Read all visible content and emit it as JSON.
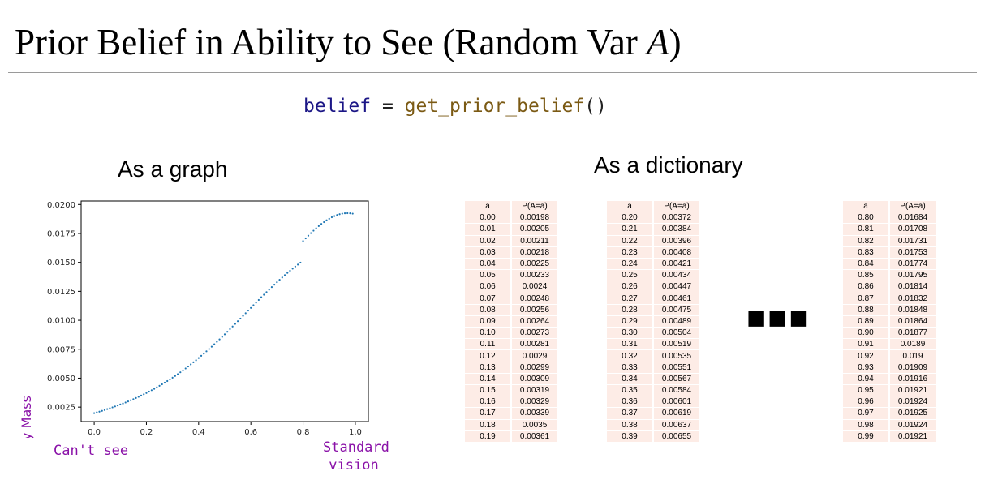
{
  "title": {
    "main": "Prior Belief in Ability to See (Random Var ",
    "var": "A",
    "close": ")"
  },
  "code": {
    "var": "belief",
    "op": " = ",
    "fn": "get_prior_belief",
    "paren": "()"
  },
  "captions": {
    "graph": "As a graph",
    "dictionary": "As a dictionary"
  },
  "chart_data": {
    "type": "scatter",
    "ylabel": "Probability Mass",
    "xlim": [
      -0.05,
      1.05
    ],
    "ylim": [
      0.00125,
      0.0203
    ],
    "xticks": [
      0.0,
      0.2,
      0.4,
      0.6,
      0.8,
      1.0
    ],
    "xtick_labels": [
      "0.0",
      "0.2",
      "0.4",
      "0.6",
      "0.8",
      "1.0"
    ],
    "yticks": [
      0.0025,
      0.005,
      0.0075,
      0.01,
      0.0125,
      0.015,
      0.0175,
      0.02
    ],
    "ytick_labels": [
      "0.0025",
      "0.0050",
      "0.0075",
      "0.0100",
      "0.0125",
      "0.0150",
      "0.0175",
      "0.0200"
    ],
    "color": "#1f77b4",
    "x": [
      0.0,
      0.01,
      0.02,
      0.03,
      0.04,
      0.05,
      0.06,
      0.07,
      0.08,
      0.09,
      0.1,
      0.11,
      0.12,
      0.13,
      0.14,
      0.15,
      0.16,
      0.17,
      0.18,
      0.19,
      0.2,
      0.21,
      0.22,
      0.23,
      0.24,
      0.25,
      0.26,
      0.27,
      0.28,
      0.29,
      0.3,
      0.31,
      0.32,
      0.33,
      0.34,
      0.35,
      0.36,
      0.37,
      0.38,
      0.39,
      0.4,
      0.41,
      0.42,
      0.43,
      0.44,
      0.45,
      0.46,
      0.47,
      0.48,
      0.49,
      0.5,
      0.51,
      0.52,
      0.53,
      0.54,
      0.55,
      0.56,
      0.57,
      0.58,
      0.59,
      0.6,
      0.61,
      0.62,
      0.63,
      0.64,
      0.65,
      0.66,
      0.67,
      0.68,
      0.69,
      0.7,
      0.71,
      0.72,
      0.73,
      0.74,
      0.75,
      0.76,
      0.77,
      0.78,
      0.79,
      0.8,
      0.81,
      0.82,
      0.83,
      0.84,
      0.85,
      0.86,
      0.87,
      0.88,
      0.89,
      0.9,
      0.91,
      0.92,
      0.93,
      0.94,
      0.95,
      0.96,
      0.97,
      0.98,
      0.99
    ],
    "y": [
      0.00198,
      0.00205,
      0.00211,
      0.00218,
      0.00225,
      0.00233,
      0.0024,
      0.00248,
      0.00256,
      0.00264,
      0.00273,
      0.00281,
      0.0029,
      0.00299,
      0.00309,
      0.00319,
      0.00329,
      0.00339,
      0.0035,
      0.00361,
      0.00372,
      0.00384,
      0.00396,
      0.00408,
      0.00421,
      0.00434,
      0.00447,
      0.00461,
      0.00475,
      0.00489,
      0.00504,
      0.00519,
      0.00535,
      0.00551,
      0.00567,
      0.00584,
      0.00601,
      0.00619,
      0.00637,
      0.00655,
      0.00674,
      0.00693,
      0.00712,
      0.00732,
      0.00752,
      0.00772,
      0.00793,
      0.00814,
      0.00835,
      0.00857,
      0.00879,
      0.00901,
      0.00924,
      0.00946,
      0.00969,
      0.00992,
      0.01015,
      0.01038,
      0.01061,
      0.01084,
      0.01107,
      0.0113,
      0.01153,
      0.01176,
      0.01199,
      0.01221,
      0.01243,
      0.01265,
      0.01287,
      0.01308,
      0.01329,
      0.0135,
      0.0137,
      0.0139,
      0.01409,
      0.01428,
      0.01446,
      0.01464,
      0.01481,
      0.01498,
      0.01684,
      0.01708,
      0.01731,
      0.01753,
      0.01774,
      0.01795,
      0.01814,
      0.01832,
      0.01848,
      0.01864,
      0.01877,
      0.0189,
      0.019,
      0.01909,
      0.01916,
      0.01921,
      0.01924,
      0.01925,
      0.01924,
      0.01921
    ]
  },
  "notes": {
    "left": "Can't see",
    "right_line1": "Standard",
    "right_line2": "vision"
  },
  "table_header": {
    "a": "a",
    "p": "P(A=a)"
  },
  "tables": [
    {
      "rows": [
        [
          "0.00",
          "0.00198"
        ],
        [
          "0.01",
          "0.00205"
        ],
        [
          "0.02",
          "0.00211"
        ],
        [
          "0.03",
          "0.00218"
        ],
        [
          "0.04",
          "0.00225"
        ],
        [
          "0.05",
          "0.00233"
        ],
        [
          "0.06",
          "0.0024"
        ],
        [
          "0.07",
          "0.00248"
        ],
        [
          "0.08",
          "0.00256"
        ],
        [
          "0.09",
          "0.00264"
        ],
        [
          "0.10",
          "0.00273"
        ],
        [
          "0.11",
          "0.00281"
        ],
        [
          "0.12",
          "0.0029"
        ],
        [
          "0.13",
          "0.00299"
        ],
        [
          "0.14",
          "0.00309"
        ],
        [
          "0.15",
          "0.00319"
        ],
        [
          "0.16",
          "0.00329"
        ],
        [
          "0.17",
          "0.00339"
        ],
        [
          "0.18",
          "0.0035"
        ],
        [
          "0.19",
          "0.00361"
        ]
      ]
    },
    {
      "rows": [
        [
          "0.20",
          "0.00372"
        ],
        [
          "0.21",
          "0.00384"
        ],
        [
          "0.22",
          "0.00396"
        ],
        [
          "0.23",
          "0.00408"
        ],
        [
          "0.24",
          "0.00421"
        ],
        [
          "0.25",
          "0.00434"
        ],
        [
          "0.26",
          "0.00447"
        ],
        [
          "0.27",
          "0.00461"
        ],
        [
          "0.28",
          "0.00475"
        ],
        [
          "0.29",
          "0.00489"
        ],
        [
          "0.30",
          "0.00504"
        ],
        [
          "0.31",
          "0.00519"
        ],
        [
          "0.32",
          "0.00535"
        ],
        [
          "0.33",
          "0.00551"
        ],
        [
          "0.34",
          "0.00567"
        ],
        [
          "0.35",
          "0.00584"
        ],
        [
          "0.36",
          "0.00601"
        ],
        [
          "0.37",
          "0.00619"
        ],
        [
          "0.38",
          "0.00637"
        ],
        [
          "0.39",
          "0.00655"
        ]
      ]
    },
    {
      "rows": [
        [
          "0.80",
          "0.01684"
        ],
        [
          "0.81",
          "0.01708"
        ],
        [
          "0.82",
          "0.01731"
        ],
        [
          "0.83",
          "0.01753"
        ],
        [
          "0.84",
          "0.01774"
        ],
        [
          "0.85",
          "0.01795"
        ],
        [
          "0.86",
          "0.01814"
        ],
        [
          "0.87",
          "0.01832"
        ],
        [
          "0.88",
          "0.01848"
        ],
        [
          "0.89",
          "0.01864"
        ],
        [
          "0.90",
          "0.01877"
        ],
        [
          "0.91",
          "0.0189"
        ],
        [
          "0.92",
          "0.019"
        ],
        [
          "0.93",
          "0.01909"
        ],
        [
          "0.94",
          "0.01916"
        ],
        [
          "0.95",
          "0.01921"
        ],
        [
          "0.96",
          "0.01924"
        ],
        [
          "0.97",
          "0.01925"
        ],
        [
          "0.98",
          "0.01924"
        ],
        [
          "0.99",
          "0.01921"
        ]
      ]
    }
  ],
  "ellipsis": "■■■"
}
